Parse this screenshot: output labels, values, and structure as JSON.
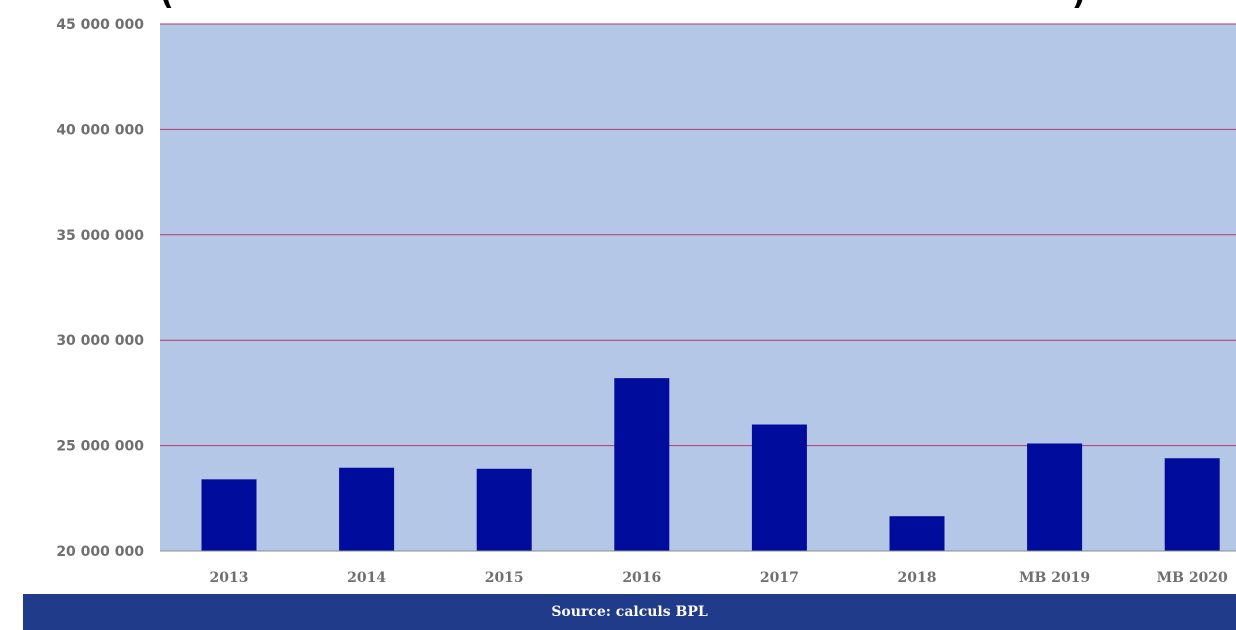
{
  "colors": {
    "plot_background": "#b4c7e7",
    "bar": "#000c9c",
    "gridline": "#b03a6f",
    "axis_text": "#6f6f6f",
    "source_bar": "#1f3b8a"
  },
  "source": {
    "text": "Source: calculs BPL"
  },
  "chart_data": {
    "type": "bar",
    "title": "",
    "xlabel": "",
    "ylabel": "",
    "categories": [
      "2013",
      "2014",
      "2015",
      "2016",
      "2017",
      "2018",
      "MB 2019",
      "MB 2020"
    ],
    "values": [
      23400000,
      23950000,
      23900000,
      28200000,
      26000000,
      21650000,
      25100000,
      24400000
    ],
    "ylim": [
      20000000,
      45000000
    ],
    "yticks": [
      20000000,
      25000000,
      30000000,
      35000000,
      40000000,
      45000000
    ],
    "ytick_labels": [
      "20 000 000",
      "25 000 000",
      "30 000 000",
      "35 000 000",
      "40 000 000",
      "45 000 000"
    ],
    "grid": true,
    "legend": "none"
  }
}
